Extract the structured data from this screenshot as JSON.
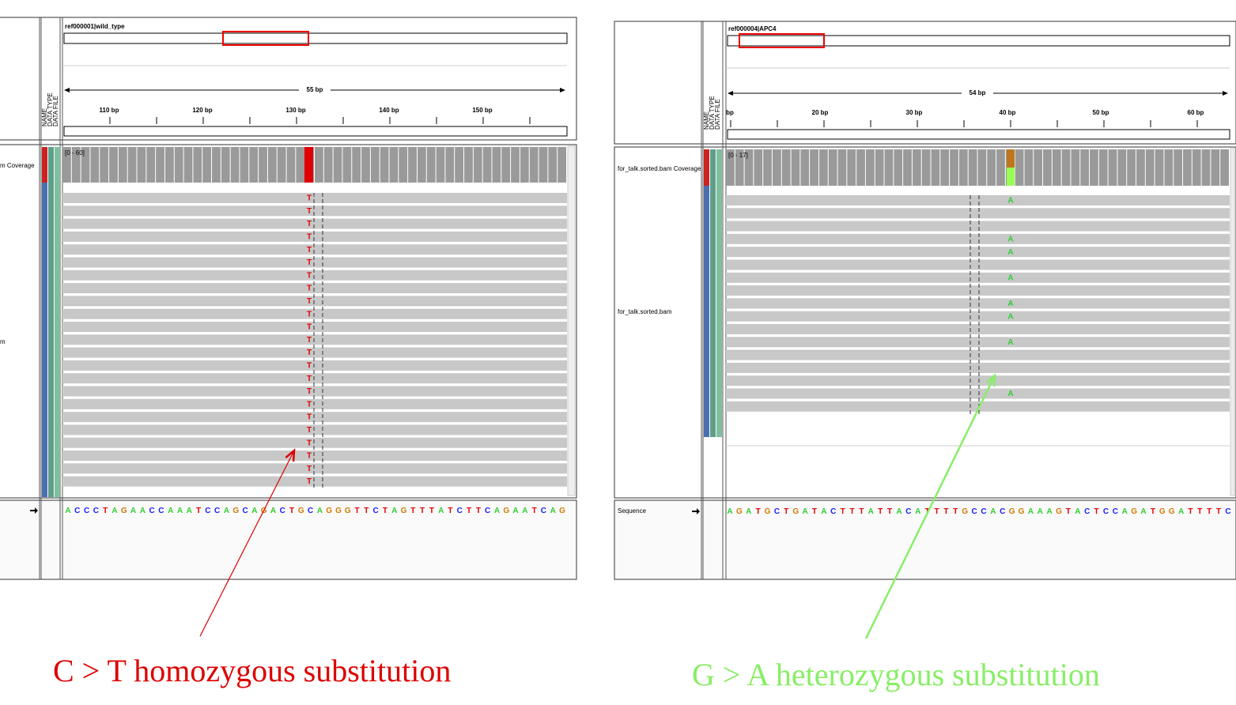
{
  "panels": [
    {
      "ref_name": "ref000001|wild_type",
      "span": "55 bp",
      "ruler_ticks": [
        "110 bp",
        "120 bp",
        "130 bp",
        "140 bp",
        "150 bp"
      ],
      "attribute_headers": [
        "NAME",
        "DATA TYPE",
        "DATA FILE"
      ],
      "coverage_range": "[0 - 60]",
      "coverage_track": "m Coverage",
      "alignment_track": "m",
      "mismatches": [
        "T",
        "T",
        "T",
        "T",
        "T",
        "T",
        "T",
        "T",
        "T",
        "T",
        "T",
        "T",
        "T",
        "T",
        "T",
        "T",
        "T",
        "T",
        "T",
        "T",
        "T",
        "T",
        "T"
      ],
      "sequence": "ACCCTAGAACCAAATCCAGCAGACTGCAGGGTTCTAGTTTATCTTCAGAATCAG",
      "annotation": "C > T homozygous substitution"
    },
    {
      "ref_name": "ref000004|APC4",
      "span": "54 bp",
      "ruler_ticks": [
        "bp",
        "20 bp",
        "30 bp",
        "40 bp",
        "50 bp",
        "60 bp"
      ],
      "attribute_headers": [
        "NAME",
        "DATA TYPE",
        "DATA FILE"
      ],
      "coverage_range": "[0 - 17]",
      "coverage_track": "for_talk.sorted.bam Coverage",
      "alignment_track": "for_talk.sorted.bam",
      "sequence_track": "Sequence",
      "mismatches": [
        "A",
        null,
        null,
        "A",
        "A",
        null,
        "A",
        null,
        "A",
        "A",
        null,
        "A",
        null,
        null,
        null,
        "A",
        null
      ],
      "sequence": "AGATGCTGATACTTTATTACATTTTGCCACGGAAAGTACTCCAGATGGATTTTC",
      "annotation": "G > A heterozygous substitution"
    }
  ]
}
